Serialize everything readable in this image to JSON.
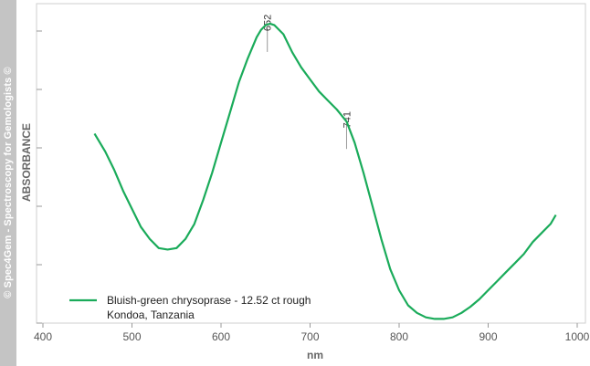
{
  "watermark": "© Spec4Gem - Spectroscopy for Gemologists ©",
  "chart_data": {
    "type": "line",
    "xlabel": "nm",
    "ylabel": "ABSORBANCE",
    "xlim": [
      400,
      1000
    ],
    "x_ticks": [
      400,
      500,
      600,
      700,
      800,
      900,
      1000
    ],
    "y_ticks_labeled": false,
    "grid": false,
    "legend_position": "bottom-left",
    "series": [
      {
        "name": "Bluish-green chrysoprase - 12.52 ct rough",
        "subtitle": "Kondoa, Tanzania",
        "color": "#1aab5a",
        "x": [
          458,
          470,
          480,
          490,
          500,
          510,
          520,
          530,
          540,
          550,
          560,
          570,
          580,
          590,
          600,
          610,
          620,
          630,
          640,
          645,
          650,
          655,
          660,
          670,
          680,
          690,
          700,
          710,
          720,
          730,
          741,
          750,
          760,
          770,
          780,
          790,
          800,
          810,
          820,
          830,
          840,
          850,
          860,
          870,
          880,
          890,
          900,
          910,
          920,
          930,
          940,
          950,
          960,
          970,
          976
        ],
        "y": [
          0.62,
          0.56,
          0.5,
          0.43,
          0.37,
          0.31,
          0.27,
          0.24,
          0.235,
          0.24,
          0.27,
          0.32,
          0.4,
          0.49,
          0.59,
          0.69,
          0.79,
          0.87,
          0.94,
          0.965,
          0.98,
          0.985,
          0.98,
          0.95,
          0.89,
          0.84,
          0.8,
          0.76,
          0.73,
          0.7,
          0.66,
          0.59,
          0.49,
          0.38,
          0.27,
          0.17,
          0.1,
          0.05,
          0.025,
          0.01,
          0.005,
          0.005,
          0.01,
          0.025,
          0.045,
          0.07,
          0.1,
          0.13,
          0.16,
          0.19,
          0.22,
          0.26,
          0.29,
          0.32,
          0.35
        ]
      }
    ],
    "peaks": [
      {
        "x": 652,
        "label": "652"
      },
      {
        "x": 741,
        "label": "741"
      }
    ]
  }
}
